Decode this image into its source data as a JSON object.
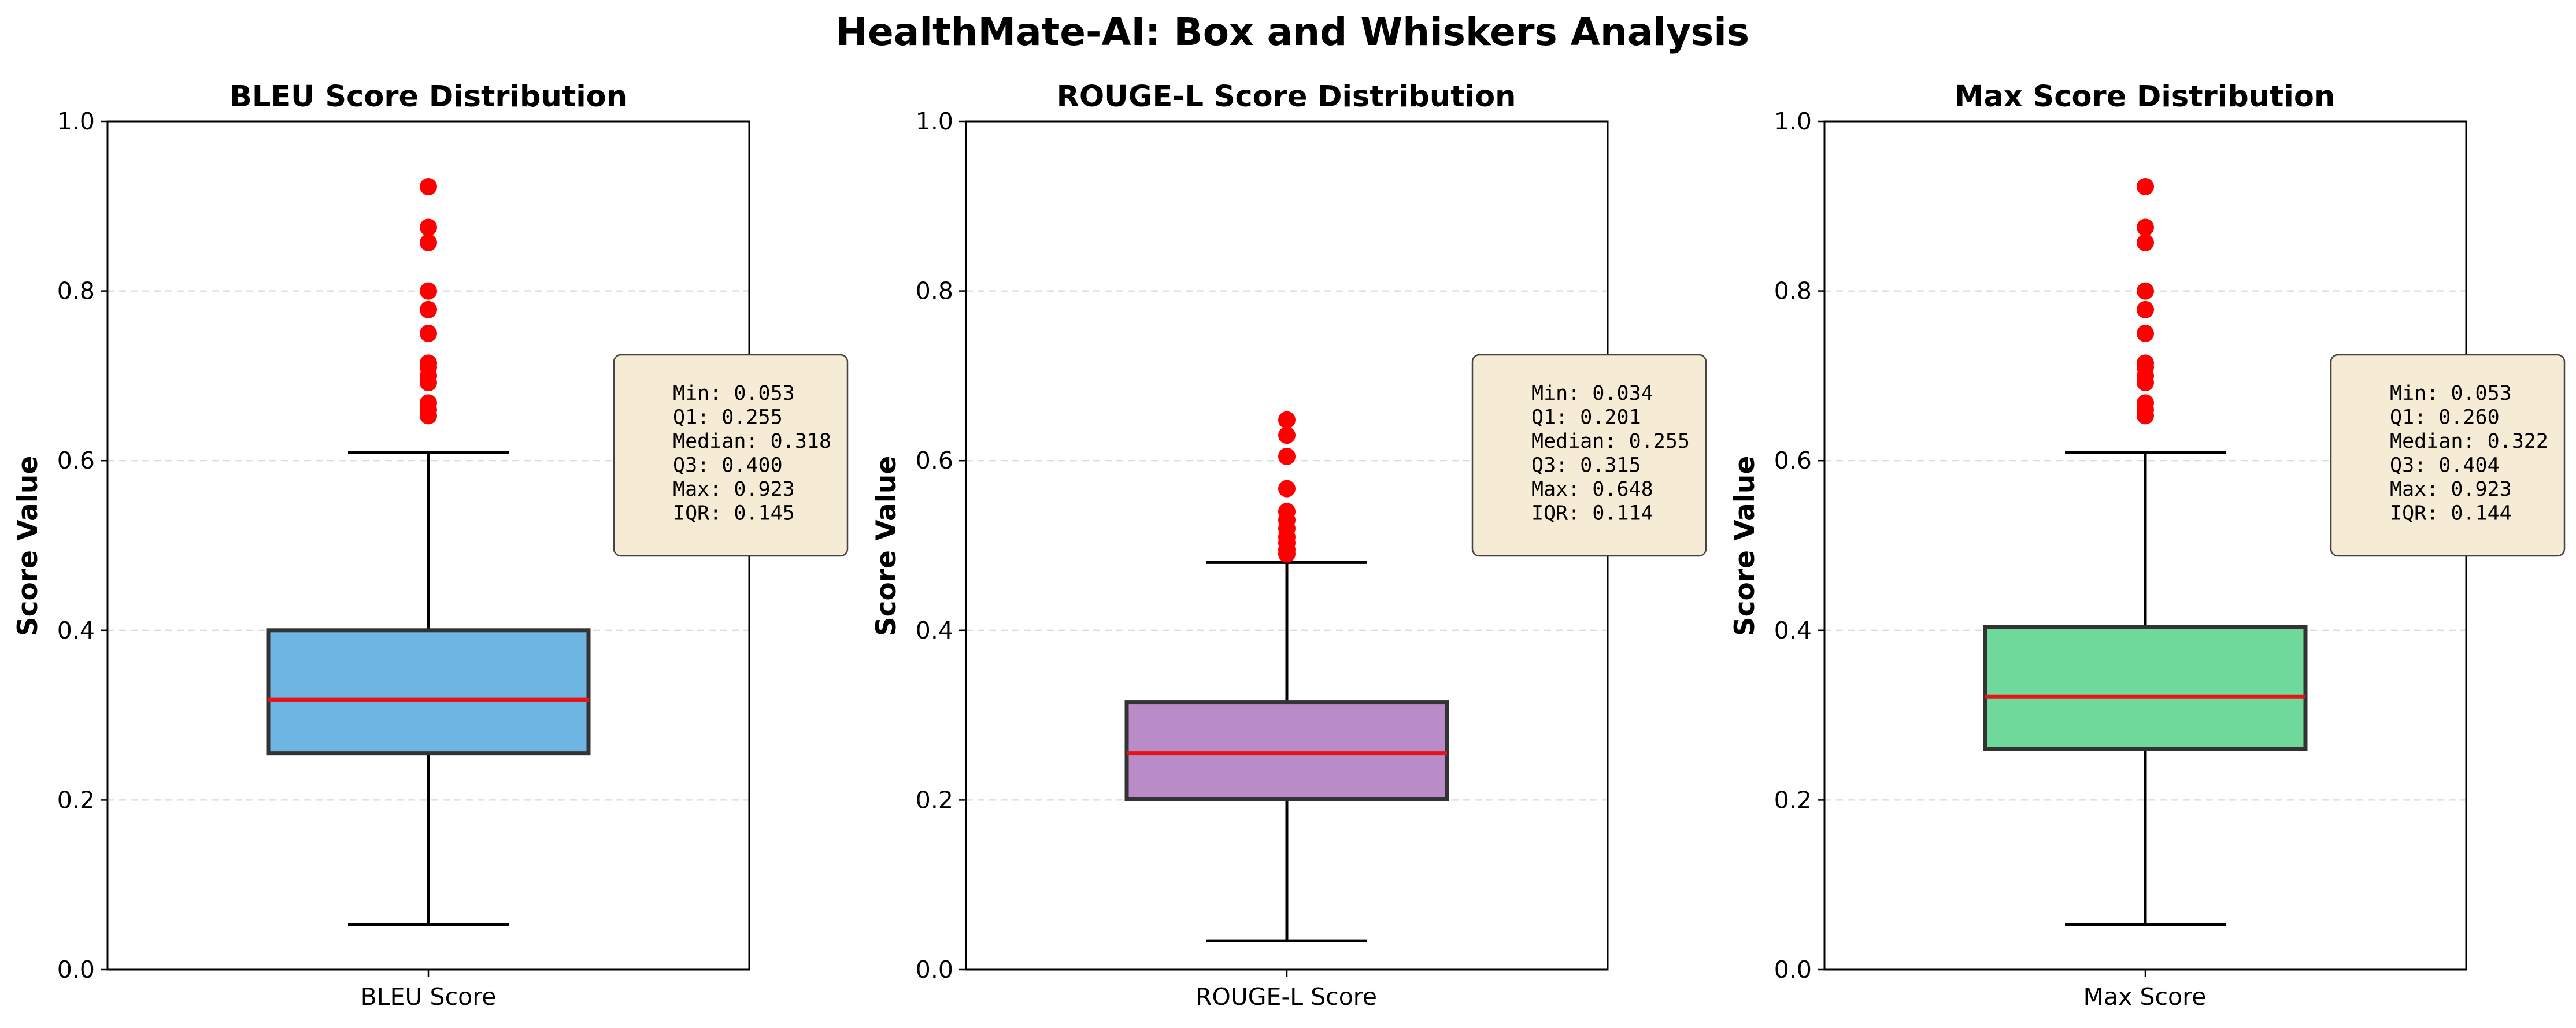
{
  "figure": {
    "title": "HealthMate-AI: Box and Whiskers Analysis"
  },
  "chart_data": [
    {
      "type": "box",
      "title": "BLEU Score Distribution",
      "ylabel": "Score Value",
      "categories": [
        "BLEU Score"
      ],
      "ylim": [
        0,
        1.0
      ],
      "yticks": [
        "0.0",
        "0.2",
        "0.4",
        "0.6",
        "0.8",
        "1.0"
      ],
      "grid": "y-dashed",
      "box_color": "#6fb5e3",
      "box": {
        "whisker_low": 0.053,
        "q1": 0.255,
        "median": 0.318,
        "q3": 0.4,
        "whisker_high": 0.61
      },
      "outliers": [
        0.653,
        0.66,
        0.668,
        0.692,
        0.7,
        0.71,
        0.715,
        0.75,
        0.778,
        0.8,
        0.857,
        0.875,
        0.923
      ],
      "stats": [
        "Min: 0.053",
        "Q1: 0.255",
        "Median: 0.318",
        "Q3: 0.400",
        "Max: 0.923",
        "IQR: 0.145"
      ]
    },
    {
      "type": "box",
      "title": "ROUGE-L Score Distribution",
      "ylabel": "Score Value",
      "categories": [
        "ROUGE-L Score"
      ],
      "ylim": [
        0,
        1.0
      ],
      "yticks": [
        "0.0",
        "0.2",
        "0.4",
        "0.6",
        "0.8",
        "1.0"
      ],
      "grid": "y-dashed",
      "box_color": "#b98bc8",
      "box": {
        "whisker_low": 0.034,
        "q1": 0.201,
        "median": 0.255,
        "q3": 0.315,
        "whisker_high": 0.48
      },
      "outliers": [
        0.49,
        0.495,
        0.503,
        0.51,
        0.52,
        0.53,
        0.54,
        0.567,
        0.605,
        0.63,
        0.648
      ],
      "stats": [
        "Min: 0.034",
        "Q1: 0.201",
        "Median: 0.255",
        "Q3: 0.315",
        "Max: 0.648",
        "IQR: 0.114"
      ]
    },
    {
      "type": "box",
      "title": "Max Score Distribution",
      "ylabel": "Score Value",
      "categories": [
        "Max Score"
      ],
      "ylim": [
        0,
        1.0
      ],
      "yticks": [
        "0.0",
        "0.2",
        "0.4",
        "0.6",
        "0.8",
        "1.0"
      ],
      "grid": "y-dashed",
      "box_color": "#6ed99a",
      "box": {
        "whisker_low": 0.053,
        "q1": 0.26,
        "median": 0.322,
        "q3": 0.404,
        "whisker_high": 0.61
      },
      "outliers": [
        0.653,
        0.66,
        0.668,
        0.692,
        0.7,
        0.71,
        0.715,
        0.75,
        0.778,
        0.8,
        0.857,
        0.875,
        0.923
      ],
      "stats": [
        "Min: 0.053",
        "Q1: 0.260",
        "Median: 0.322",
        "Q3: 0.404",
        "Max: 0.923",
        "IQR: 0.144"
      ]
    }
  ],
  "colors": {
    "median": "#e8121a",
    "outlier": "#ff0000",
    "box_edge": "#333333",
    "stats_box_fill": "#f6ecd6",
    "stats_box_edge": "#444444",
    "grid": "#d0d0d0"
  }
}
